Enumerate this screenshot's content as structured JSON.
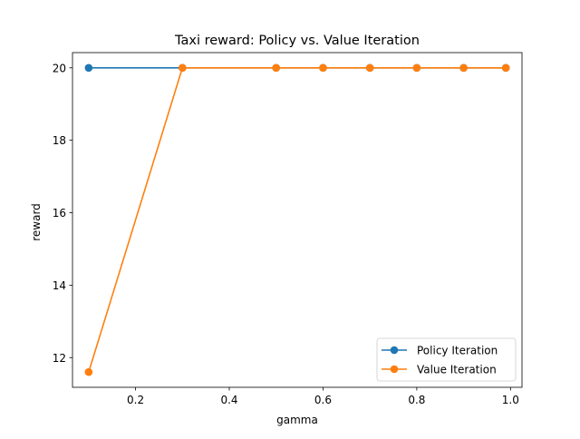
{
  "chart_data": {
    "type": "line",
    "title": "Taxi reward: Policy vs. Value Iteration",
    "xlabel": "gamma",
    "ylabel": "reward",
    "xlim": [
      0.0655,
      1.0245
    ],
    "ylim": [
      11.18,
      20.42
    ],
    "xticks": [
      0.2,
      0.4,
      0.6,
      0.8,
      1.0
    ],
    "xtick_labels": [
      "0.2",
      "0.4",
      "0.6",
      "0.8",
      "1.0"
    ],
    "yticks": [
      12,
      14,
      16,
      18,
      20
    ],
    "ytick_labels": [
      "12",
      "14",
      "16",
      "18",
      "20"
    ],
    "grid": false,
    "legend_position": "lower-right",
    "x": [
      0.1,
      0.3,
      0.5,
      0.6,
      0.7,
      0.8,
      0.9,
      0.99
    ],
    "series": [
      {
        "name": "Policy Iteration",
        "color": "#1f77b4",
        "marker": "circle",
        "values": [
          20,
          20,
          20,
          20,
          20,
          20,
          20,
          20
        ]
      },
      {
        "name": "Value Iteration",
        "color": "#ff7f0e",
        "marker": "circle",
        "values": [
          11.6,
          20,
          20,
          20,
          20,
          20,
          20,
          20
        ]
      }
    ]
  }
}
